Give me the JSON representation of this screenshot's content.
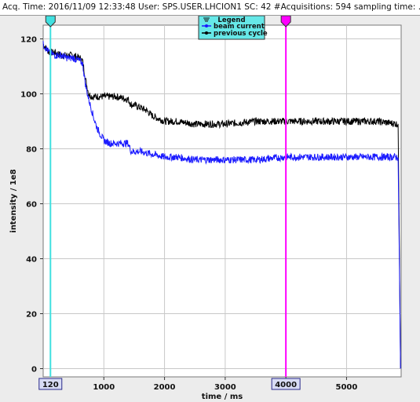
{
  "header": {
    "text": "Acq. Time: 2016/11/09 12:33:48 User: SPS.USER.LHCION1 SC: 42 #Acquisitions: 594 sampling time: ..."
  },
  "chart_data": {
    "type": "line",
    "xlabel": "time / ms",
    "ylabel": "intensity / 1e8",
    "xlim": [
      0,
      5900
    ],
    "ylim": [
      -3,
      125
    ],
    "x_ticks": [
      1000,
      2000,
      3000,
      4000,
      5000
    ],
    "y_ticks": [
      0,
      20,
      40,
      60,
      80,
      100,
      120
    ],
    "grid": true,
    "legend": {
      "title": "Legend",
      "placement": "top-center"
    },
    "series": [
      {
        "name": "beam current",
        "color": "#1a1aff",
        "x": [
          0,
          100,
          200,
          300,
          400,
          500,
          600,
          650,
          700,
          750,
          800,
          850,
          900,
          950,
          1000,
          1100,
          1200,
          1300,
          1400,
          1450,
          1500,
          1600,
          1800,
          2000,
          2200,
          2500,
          3000,
          3500,
          4000,
          4500,
          5000,
          5500,
          5850,
          5870,
          5890
        ],
        "values": [
          118,
          115,
          114,
          114,
          113,
          113,
          112,
          111,
          103,
          98,
          94,
          90,
          87,
          85,
          83,
          82,
          82,
          82,
          82,
          79,
          79,
          79,
          78,
          77,
          77,
          76,
          76,
          76,
          77,
          77,
          77,
          77,
          77,
          40,
          0
        ]
      },
      {
        "name": "previous cycle",
        "color": "#000000",
        "x": [
          0,
          100,
          200,
          300,
          400,
          500,
          600,
          650,
          700,
          750,
          800,
          1000,
          1200,
          1400,
          1450,
          1500,
          1600,
          1700,
          1800,
          1900,
          2000,
          2200,
          2500,
          3000,
          3500,
          4000,
          4500,
          5000,
          5500,
          5850,
          5870,
          5890
        ],
        "values": [
          118,
          115,
          115,
          114,
          114,
          114,
          113,
          112,
          105,
          100,
          99,
          99,
          99,
          98,
          96,
          96,
          95,
          94,
          92,
          91,
          90,
          90,
          89,
          89,
          90,
          90,
          90,
          90,
          90,
          89,
          45,
          0
        ]
      }
    ],
    "markers": [
      {
        "label": "120",
        "x": 120,
        "color": "#40e0e0"
      },
      {
        "label": "4000",
        "x": 4000,
        "color": "#ff00ff"
      }
    ]
  }
}
